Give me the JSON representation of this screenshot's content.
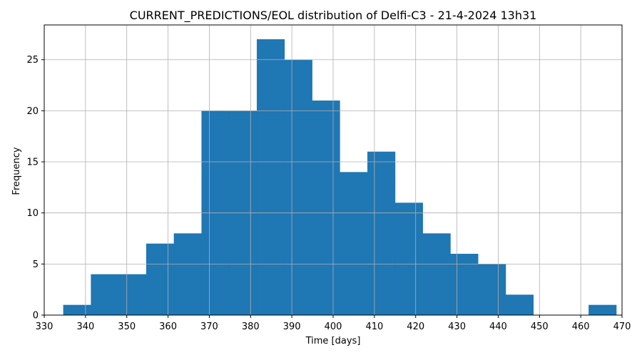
{
  "chart_data": {
    "type": "bar",
    "title": "CURRENT_PREDICTIONS/EOL distribution of Delfi-C3 - 21-4-2024 13h31",
    "xlabel": "Time [days]",
    "ylabel": "Frequency",
    "xlim": [
      330,
      470
    ],
    "ylim": [
      0,
      28.4
    ],
    "xticks": [
      330,
      340,
      350,
      360,
      370,
      380,
      390,
      400,
      410,
      420,
      430,
      440,
      450,
      460,
      470
    ],
    "yticks": [
      0,
      5,
      10,
      15,
      20,
      25
    ],
    "grid": true,
    "bar_color": "#1f77b4",
    "bin_edges": [
      334.6,
      341.3,
      348.0,
      354.7,
      361.4,
      368.1,
      374.8,
      381.5,
      388.2,
      394.9,
      401.6,
      408.3,
      415.0,
      421.7,
      428.4,
      435.1,
      441.8,
      448.5,
      455.2,
      461.9,
      468.6
    ],
    "values": [
      1,
      4,
      4,
      7,
      8,
      20,
      20,
      27,
      25,
      21,
      14,
      16,
      11,
      8,
      6,
      5,
      2,
      0,
      0,
      1
    ]
  }
}
